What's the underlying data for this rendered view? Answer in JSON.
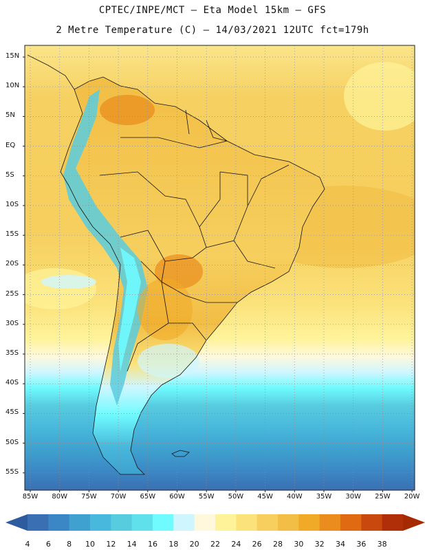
{
  "title_line1": "CPTEC/INPE/MCT –  Eta Model 15km – GFS",
  "title_line2": "2 Metre Temperature (C) – 14/03/2021 12UTC fct=179h",
  "lat_ticks": [
    "15N",
    "10N",
    "5N",
    "EQ",
    "5S",
    "10S",
    "15S",
    "20S",
    "25S",
    "30S",
    "35S",
    "40S",
    "45S",
    "50S",
    "55S"
  ],
  "lon_ticks": [
    "85W",
    "80W",
    "75W",
    "70W",
    "65W",
    "60W",
    "55W",
    "50W",
    "45W",
    "40W",
    "35W",
    "30W",
    "25W",
    "20W"
  ],
  "colorbar": {
    "labels": [
      "4",
      "6",
      "8",
      "10",
      "12",
      "14",
      "16",
      "18",
      "20",
      "22",
      "24",
      "26",
      "28",
      "30",
      "32",
      "34",
      "36",
      "38"
    ],
    "colors": [
      "#3a6fb3",
      "#3b86c4",
      "#3ea1cf",
      "#48b8dc",
      "#58ccdf",
      "#5fe0ea",
      "#6ffbff",
      "#cff6ff",
      "#fff8dc",
      "#fff39a",
      "#fbe27a",
      "#f6cf5e",
      "#f2be45",
      "#f0aa28",
      "#ea8d1e",
      "#df6a12",
      "#c8480d",
      "#b02e08"
    ],
    "under_color": "#2e5b9e",
    "over_color": "#a52a00"
  },
  "map_data": {
    "region": "South America",
    "variable": "2 Metre Temperature (C)",
    "projection": "Latitude-Longitude grid",
    "grid_lines": "dotted"
  }
}
